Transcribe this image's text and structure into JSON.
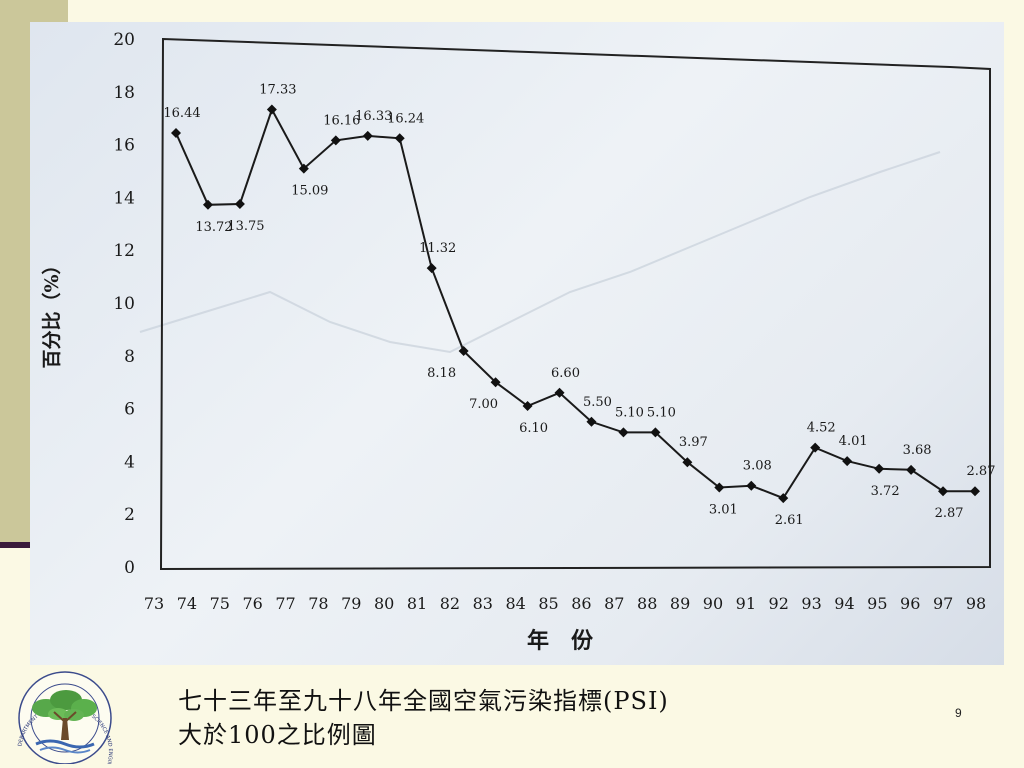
{
  "slide": {
    "caption_line1": "七十三年至九十八年全國空氣污染指標(PSI)",
    "caption_line2": "大於100之比例圖",
    "page_number": "9"
  },
  "logo": {
    "ring_text": "DEPARTMENT OF ENVIRONMENTAL SCIENCE AND ENGINEERING · TUNGHAI UNIVERSITY"
  },
  "chart_data": {
    "type": "line",
    "xlabel": "年　份",
    "ylabel": "百分比（%）",
    "ylim": [
      0,
      20
    ],
    "yticks": [
      0,
      2,
      4,
      6,
      8,
      10,
      12,
      14,
      16,
      18,
      20
    ],
    "categories": [
      "73",
      "74",
      "75",
      "76",
      "77",
      "78",
      "79",
      "80",
      "81",
      "82",
      "83",
      "84",
      "85",
      "86",
      "87",
      "88",
      "89",
      "90",
      "91",
      "92",
      "93",
      "94",
      "95",
      "96",
      "97",
      "98"
    ],
    "values": [
      16.44,
      13.72,
      13.75,
      17.33,
      15.09,
      16.16,
      16.33,
      16.24,
      11.32,
      8.18,
      7.0,
      6.1,
      6.6,
      5.5,
      5.1,
      5.1,
      3.97,
      3.01,
      3.08,
      2.61,
      4.52,
      4.01,
      3.72,
      3.68,
      2.87,
      2.87
    ],
    "labels": [
      "16.44",
      "13.72",
      "13.75",
      "17.33",
      "15.09",
      "16.16",
      "16.33",
      "16.24",
      "11.32",
      "8.18",
      "7.00",
      "6.10",
      "6.60",
      "5.50",
      "5.10",
      "5.10",
      "3.97",
      "3.01",
      "3.08",
      "2.61",
      "4.52",
      "4.01",
      "3.72",
      "3.68",
      "2.87",
      "2.87"
    ],
    "colors": {
      "line": "#1a1a1a",
      "marker": "#111111",
      "text": "#1a1a1a",
      "frame": "#222222"
    }
  }
}
